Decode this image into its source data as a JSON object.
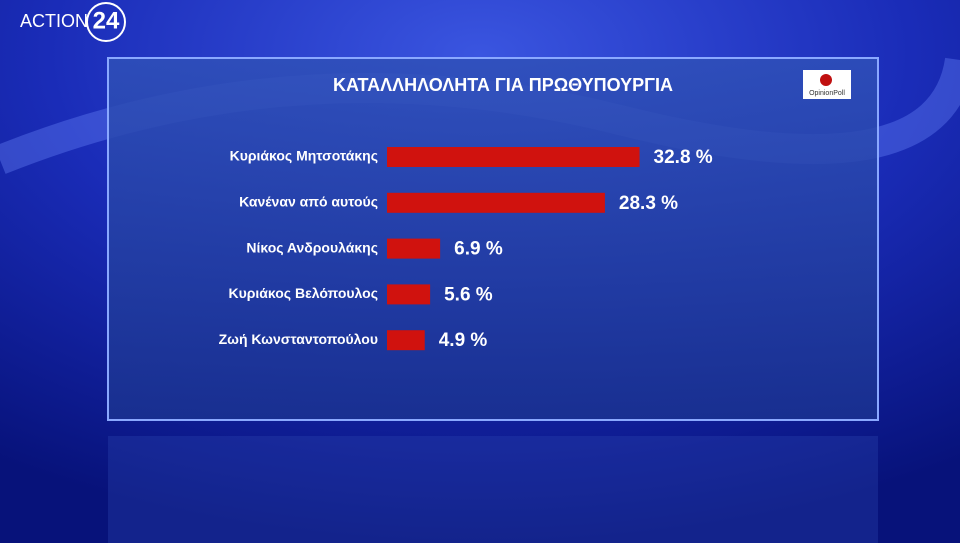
{
  "logo": {
    "channel": "ACTION",
    "number": "24"
  },
  "source": "OpinionPoll",
  "chart_data": {
    "type": "bar",
    "orientation": "horizontal",
    "title": "ΚΑΤΑΛΛΗΛΟΛΗΤΑ ΓΙΑ ΠΡΩΘΥΠΟΥΡΓΙΑ",
    "categories": [
      "Κυριάκος Μητσοτάκης",
      "Κανέναν από αυτούς",
      "Νίκος Ανδρουλάκης",
      "Κυριάκος Βελόπουλος",
      "Ζωή Κωνσταντοπούλου"
    ],
    "values": [
      32.8,
      28.3,
      6.9,
      5.6,
      4.9
    ],
    "value_labels": [
      "32.8 %",
      "28.3 %",
      "6.9 %",
      "5.6 %",
      "4.9 %"
    ],
    "color": "#d0120e"
  }
}
